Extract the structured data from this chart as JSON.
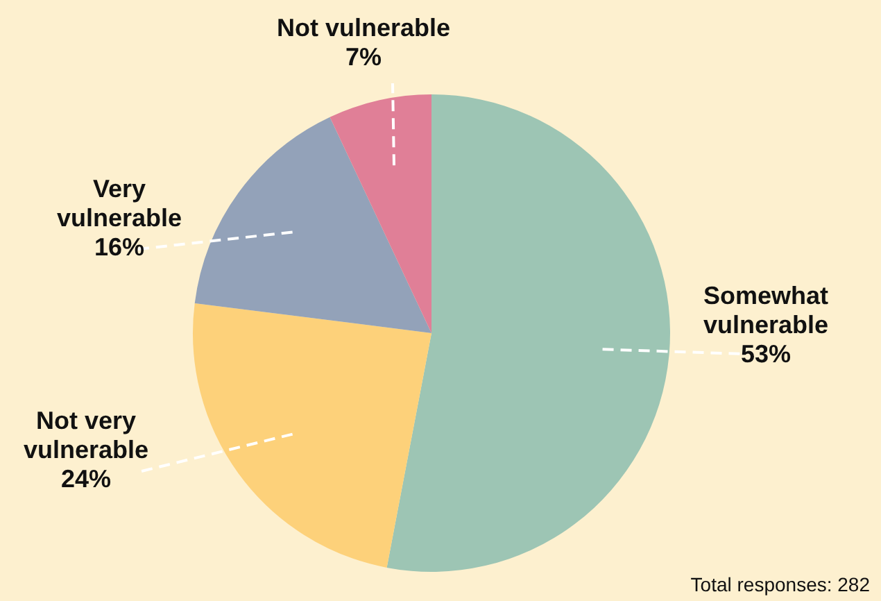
{
  "chart_data": {
    "type": "pie",
    "categories": [
      "Somewhat vulnerable",
      "Not very vulnerable",
      "Very vulnerable",
      "Not vulnerable"
    ],
    "values": [
      53,
      24,
      16,
      7
    ],
    "colors": [
      "#9dc5b4",
      "#fdd17a",
      "#93a2b9",
      "#e07f97"
    ],
    "value_labels": [
      "53%",
      "24%",
      "16%",
      "7%"
    ],
    "legend": false,
    "annotations": [
      "Total responses: 282"
    ]
  }
}
